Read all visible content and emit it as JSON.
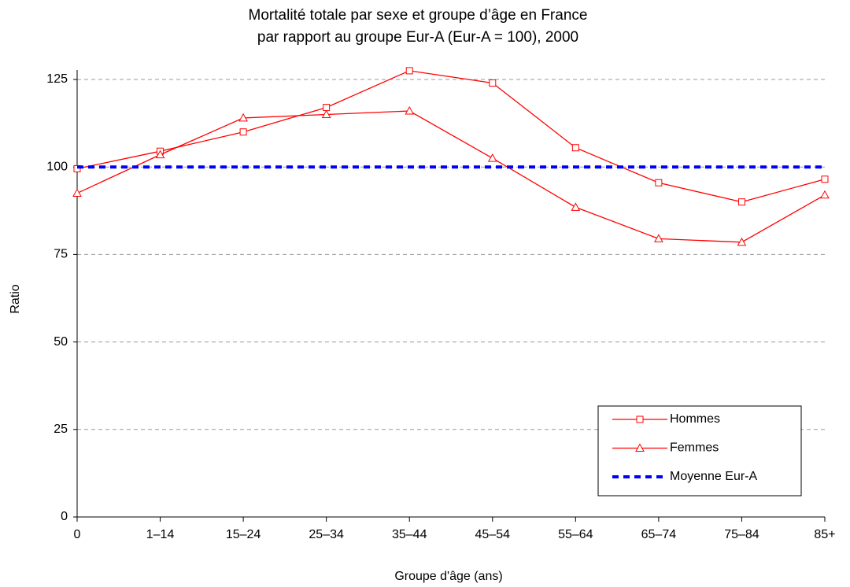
{
  "chart_data": {
    "type": "line",
    "title_lines": [
      "Mortalité totale par sexe et groupe d’âge en France",
      "par rapport au groupe Eur-A (Eur-A = 100), 2000"
    ],
    "x_label": "Groupe d'âge (ans)",
    "y_label": "Ratio",
    "categories": [
      "0",
      "1–14",
      "15–24",
      "25–34",
      "35–44",
      "45–54",
      "55–64",
      "65–74",
      "75–84",
      "85+"
    ],
    "series": [
      {
        "name": "Hommes",
        "color": "#ff0000",
        "marker": "square",
        "values": [
          99.5,
          104.5,
          110,
          117,
          127.5,
          124,
          105.5,
          95.5,
          90,
          96.5
        ]
      },
      {
        "name": "Femmes",
        "color": "#ff0000",
        "marker": "triangle",
        "values": [
          92.5,
          103.5,
          114,
          115,
          116,
          102.5,
          88.5,
          79.5,
          78.5,
          92
        ]
      },
      {
        "name": "Moyenne Eur-A",
        "color": "#0000ff",
        "marker": "none",
        "dashed": true,
        "values": [
          100,
          100,
          100,
          100,
          100,
          100,
          100,
          100,
          100,
          100
        ]
      }
    ],
    "ylim": [
      0,
      125
    ],
    "yticks": [
      0,
      25,
      50,
      75,
      100,
      125
    ],
    "grid": true,
    "legend": "bottom-right"
  }
}
